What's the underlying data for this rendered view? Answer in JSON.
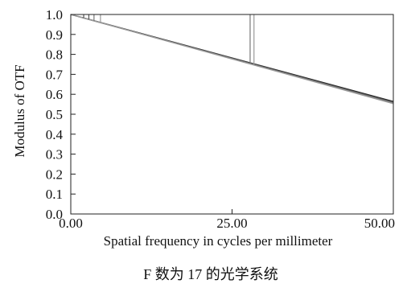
{
  "caption": "F 数为 17 的光学系统",
  "chart_data": {
    "type": "line",
    "title": "",
    "xlabel": "Spatial frequency in cycles per millimeter",
    "ylabel": "Modulus of OTF",
    "xlim": [
      0,
      50
    ],
    "ylim": [
      0,
      1.0
    ],
    "x_ticks": [
      0,
      25,
      50
    ],
    "x_tick_labels": [
      "0.00",
      "25.00",
      "50.00"
    ],
    "y_ticks": [
      0,
      0.1,
      0.2,
      0.3,
      0.4,
      0.5,
      0.6,
      0.7,
      0.8,
      0.9,
      1.0
    ],
    "y_tick_labels": [
      "0.0",
      "0.1",
      "0.2",
      "0.3",
      "0.4",
      "0.5",
      "0.6",
      "0.7",
      "0.8",
      "0.9",
      "1.0"
    ],
    "grid": false,
    "legend": "none",
    "series": [
      {
        "color": "#222222",
        "x": [
          0,
          25,
          50
        ],
        "y": [
          1.0,
          0.782,
          0.564
        ]
      },
      {
        "color": "#555555",
        "x": [
          0,
          25,
          50
        ],
        "y": [
          1.0,
          0.78,
          0.56
        ]
      },
      {
        "color": "#777777",
        "x": [
          0,
          25,
          50
        ],
        "y": [
          1.0,
          0.778,
          0.556
        ]
      },
      {
        "color": "#999999",
        "x": [
          0,
          25,
          50
        ],
        "y": [
          1.0,
          0.777,
          0.553
        ]
      }
    ],
    "markers": [
      {
        "x": 2.0,
        "y_top": 1.0,
        "y_bottom": 0.982,
        "color": "#555555"
      },
      {
        "x": 2.8,
        "y_top": 1.0,
        "y_bottom": 0.975,
        "color": "#555555"
      },
      {
        "x": 3.6,
        "y_top": 1.0,
        "y_bottom": 0.968,
        "color": "#777777"
      },
      {
        "x": 4.6,
        "y_top": 1.0,
        "y_bottom": 0.96,
        "color": "#999999"
      },
      {
        "x": 27.8,
        "y_top": 1.0,
        "y_bottom": 0.755,
        "color": "#777777"
      },
      {
        "x": 28.4,
        "y_top": 1.0,
        "y_bottom": 0.75,
        "color": "#999999"
      }
    ]
  }
}
